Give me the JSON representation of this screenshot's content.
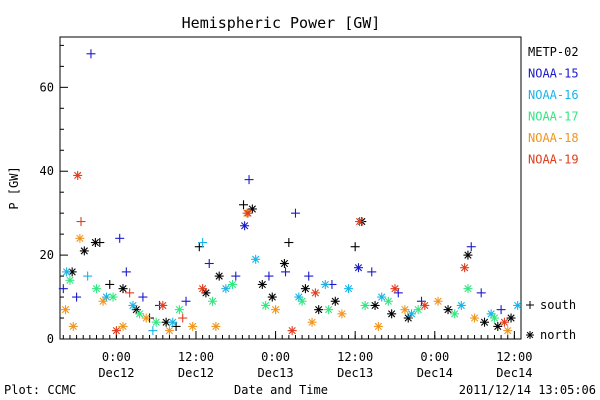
{
  "chart_data": {
    "type": "scatter",
    "title": "Hemispheric Power [GW]",
    "ylabel": "P [GW]",
    "xlabel": "Date and Time",
    "ylim": [
      0,
      72
    ],
    "xlim": [
      "2011-12-11T15:30",
      "2011-12-14T13:00"
    ],
    "y_ticks": [
      0,
      20,
      40,
      60
    ],
    "x_ticks": [
      {
        "t": "2011-12-12T00:00",
        "line1": "0:00",
        "line2": "Dec12"
      },
      {
        "t": "2011-12-12T12:00",
        "line1": "12:00",
        "line2": "Dec12"
      },
      {
        "t": "2011-12-13T00:00",
        "line1": "0:00",
        "line2": "Dec13"
      },
      {
        "t": "2011-12-13T12:00",
        "line1": "12:00",
        "line2": "Dec13"
      },
      {
        "t": "2011-12-14T00:00",
        "line1": "0:00",
        "line2": "Dec14"
      },
      {
        "t": "2011-12-14T12:00",
        "line1": "12:00",
        "line2": "Dec14"
      }
    ],
    "marker_legend": [
      {
        "symbol": "+",
        "label": "south"
      },
      {
        "symbol": "*",
        "label": "north"
      }
    ],
    "series": [
      {
        "name": "METP-02",
        "color": "#000000",
        "points": [
          {
            "x": "2011-12-11T17:20",
            "y": 16.0,
            "m": "north"
          },
          {
            "x": "2011-12-11T19:10",
            "y": 21.0,
            "m": "north"
          },
          {
            "x": "2011-12-11T20:50",
            "y": 23.0,
            "m": "north"
          },
          {
            "x": "2011-12-11T21:30",
            "y": 23.0,
            "m": "south"
          },
          {
            "x": "2011-12-11T23:00",
            "y": 13.0,
            "m": "south"
          },
          {
            "x": "2011-12-12T01:00",
            "y": 12.0,
            "m": "north"
          },
          {
            "x": "2011-12-12T03:00",
            "y": 7.0,
            "m": "north"
          },
          {
            "x": "2011-12-12T05:00",
            "y": 5.0,
            "m": "south"
          },
          {
            "x": "2011-12-12T07:30",
            "y": 4.0,
            "m": "north"
          },
          {
            "x": "2011-12-12T09:00",
            "y": 3.0,
            "m": "south"
          },
          {
            "x": "2011-12-12T12:30",
            "y": 22.0,
            "m": "south"
          },
          {
            "x": "2011-12-12T13:30",
            "y": 11.0,
            "m": "north"
          },
          {
            "x": "2011-12-12T15:30",
            "y": 15.0,
            "m": "north"
          },
          {
            "x": "2011-12-12T19:10",
            "y": 32.0,
            "m": "south"
          },
          {
            "x": "2011-12-12T20:30",
            "y": 31.0,
            "m": "north"
          },
          {
            "x": "2011-12-12T22:00",
            "y": 13.0,
            "m": "north"
          },
          {
            "x": "2011-12-12T23:30",
            "y": 10.0,
            "m": "north"
          },
          {
            "x": "2011-12-13T01:20",
            "y": 18.0,
            "m": "north"
          },
          {
            "x": "2011-12-13T02:00",
            "y": 23.0,
            "m": "south"
          },
          {
            "x": "2011-12-13T04:30",
            "y": 12.0,
            "m": "north"
          },
          {
            "x": "2011-12-13T06:30",
            "y": 7.0,
            "m": "north"
          },
          {
            "x": "2011-12-13T09:00",
            "y": 9.0,
            "m": "north"
          },
          {
            "x": "2011-12-13T12:00",
            "y": 22.0,
            "m": "south"
          },
          {
            "x": "2011-12-13T13:00",
            "y": 28.0,
            "m": "north"
          },
          {
            "x": "2011-12-13T15:00",
            "y": 8.0,
            "m": "north"
          },
          {
            "x": "2011-12-13T17:30",
            "y": 6.0,
            "m": "north"
          },
          {
            "x": "2011-12-13T20:00",
            "y": 5.0,
            "m": "north"
          },
          {
            "x": "2011-12-14T02:00",
            "y": 7.0,
            "m": "north"
          },
          {
            "x": "2011-12-14T05:00",
            "y": 20.0,
            "m": "north"
          },
          {
            "x": "2011-12-14T07:30",
            "y": 4.0,
            "m": "north"
          },
          {
            "x": "2011-12-14T09:30",
            "y": 3.0,
            "m": "north"
          },
          {
            "x": "2011-12-14T11:30",
            "y": 5.0,
            "m": "north"
          }
        ]
      },
      {
        "name": "NOAA-15",
        "color": "#1a1acc",
        "points": [
          {
            "x": "2011-12-11T16:00",
            "y": 12.0,
            "m": "south"
          },
          {
            "x": "2011-12-11T18:00",
            "y": 10.0,
            "m": "south"
          },
          {
            "x": "2011-12-11T20:10",
            "y": 68.0,
            "m": "south"
          },
          {
            "x": "2011-12-12T00:30",
            "y": 24.0,
            "m": "south"
          },
          {
            "x": "2011-12-12T01:30",
            "y": 16.0,
            "m": "south"
          },
          {
            "x": "2011-12-12T04:00",
            "y": 10.0,
            "m": "south"
          },
          {
            "x": "2011-12-12T06:30",
            "y": 8.0,
            "m": "south"
          },
          {
            "x": "2011-12-12T10:30",
            "y": 9.0,
            "m": "south"
          },
          {
            "x": "2011-12-12T14:00",
            "y": 18.0,
            "m": "south"
          },
          {
            "x": "2011-12-12T18:00",
            "y": 15.0,
            "m": "south"
          },
          {
            "x": "2011-12-12T19:20",
            "y": 27.0,
            "m": "north"
          },
          {
            "x": "2011-12-12T20:00",
            "y": 38.0,
            "m": "south"
          },
          {
            "x": "2011-12-12T23:00",
            "y": 15.0,
            "m": "south"
          },
          {
            "x": "2011-12-13T01:30",
            "y": 16.0,
            "m": "south"
          },
          {
            "x": "2011-12-13T03:00",
            "y": 30.0,
            "m": "south"
          },
          {
            "x": "2011-12-13T05:00",
            "y": 15.0,
            "m": "south"
          },
          {
            "x": "2011-12-13T08:30",
            "y": 13.0,
            "m": "south"
          },
          {
            "x": "2011-12-13T12:30",
            "y": 17.0,
            "m": "north"
          },
          {
            "x": "2011-12-13T14:30",
            "y": 16.0,
            "m": "south"
          },
          {
            "x": "2011-12-13T18:30",
            "y": 11.0,
            "m": "south"
          },
          {
            "x": "2011-12-13T22:00",
            "y": 9.0,
            "m": "south"
          },
          {
            "x": "2011-12-14T05:30",
            "y": 22.0,
            "m": "south"
          },
          {
            "x": "2011-12-14T07:00",
            "y": 11.0,
            "m": "south"
          },
          {
            "x": "2011-12-14T10:00",
            "y": 7.0,
            "m": "south"
          }
        ]
      },
      {
        "name": "NOAA-16",
        "color": "#1ab4e6",
        "points": [
          {
            "x": "2011-12-11T16:30",
            "y": 16.0,
            "m": "north"
          },
          {
            "x": "2011-12-11T19:40",
            "y": 15.0,
            "m": "south"
          },
          {
            "x": "2011-12-11T22:30",
            "y": 10.0,
            "m": "north"
          },
          {
            "x": "2011-12-12T02:30",
            "y": 8.0,
            "m": "north"
          },
          {
            "x": "2011-12-12T05:30",
            "y": 2.0,
            "m": "south"
          },
          {
            "x": "2011-12-12T08:30",
            "y": 4.0,
            "m": "north"
          },
          {
            "x": "2011-12-12T13:00",
            "y": 23.0,
            "m": "south"
          },
          {
            "x": "2011-12-12T16:30",
            "y": 12.0,
            "m": "north"
          },
          {
            "x": "2011-12-12T21:00",
            "y": 19.0,
            "m": "north"
          },
          {
            "x": "2011-12-13T03:30",
            "y": 10.0,
            "m": "north"
          },
          {
            "x": "2011-12-13T07:30",
            "y": 13.0,
            "m": "north"
          },
          {
            "x": "2011-12-13T11:00",
            "y": 12.0,
            "m": "north"
          },
          {
            "x": "2011-12-13T16:00",
            "y": 10.0,
            "m": "north"
          },
          {
            "x": "2011-12-13T20:30",
            "y": 6.0,
            "m": "north"
          },
          {
            "x": "2011-12-14T04:00",
            "y": 8.0,
            "m": "north"
          },
          {
            "x": "2011-12-14T08:30",
            "y": 6.0,
            "m": "north"
          },
          {
            "x": "2011-12-14T12:30",
            "y": 8.0,
            "m": "north"
          }
        ]
      },
      {
        "name": "NOAA-17",
        "color": "#33e680",
        "points": [
          {
            "x": "2011-12-11T17:00",
            "y": 14.0,
            "m": "north"
          },
          {
            "x": "2011-12-11T21:00",
            "y": 12.0,
            "m": "north"
          },
          {
            "x": "2011-12-11T23:30",
            "y": 10.0,
            "m": "north"
          },
          {
            "x": "2011-12-12T03:30",
            "y": 6.0,
            "m": "north"
          },
          {
            "x": "2011-12-12T06:00",
            "y": 4.0,
            "m": "north"
          },
          {
            "x": "2011-12-12T09:30",
            "y": 7.0,
            "m": "north"
          },
          {
            "x": "2011-12-12T14:30",
            "y": 9.0,
            "m": "north"
          },
          {
            "x": "2011-12-12T17:30",
            "y": 13.0,
            "m": "north"
          },
          {
            "x": "2011-12-12T22:30",
            "y": 8.0,
            "m": "north"
          },
          {
            "x": "2011-12-13T04:00",
            "y": 9.0,
            "m": "north"
          },
          {
            "x": "2011-12-13T08:00",
            "y": 7.0,
            "m": "north"
          },
          {
            "x": "2011-12-13T13:30",
            "y": 8.0,
            "m": "north"
          },
          {
            "x": "2011-12-13T17:00",
            "y": 9.0,
            "m": "north"
          },
          {
            "x": "2011-12-13T21:30",
            "y": 7.0,
            "m": "north"
          },
          {
            "x": "2011-12-14T03:00",
            "y": 6.0,
            "m": "north"
          },
          {
            "x": "2011-12-14T05:00",
            "y": 12.0,
            "m": "north"
          },
          {
            "x": "2011-12-14T09:00",
            "y": 5.0,
            "m": "north"
          }
        ]
      },
      {
        "name": "NOAA-18",
        "color": "#f0961e",
        "points": [
          {
            "x": "2011-12-11T16:20",
            "y": 7.0,
            "m": "north"
          },
          {
            "x": "2011-12-11T17:30",
            "y": 3.0,
            "m": "north"
          },
          {
            "x": "2011-12-11T18:30",
            "y": 24.0,
            "m": "north"
          },
          {
            "x": "2011-12-11T22:00",
            "y": 9.0,
            "m": "north"
          },
          {
            "x": "2011-12-12T01:00",
            "y": 3.0,
            "m": "north"
          },
          {
            "x": "2011-12-12T04:30",
            "y": 5.0,
            "m": "north"
          },
          {
            "x": "2011-12-12T08:00",
            "y": 2.0,
            "m": "north"
          },
          {
            "x": "2011-12-12T11:30",
            "y": 3.0,
            "m": "north"
          },
          {
            "x": "2011-12-12T15:00",
            "y": 3.0,
            "m": "north"
          },
          {
            "x": "2011-12-12T19:40",
            "y": 30.0,
            "m": "north"
          },
          {
            "x": "2011-12-13T00:00",
            "y": 7.0,
            "m": "north"
          },
          {
            "x": "2011-12-13T05:30",
            "y": 4.0,
            "m": "north"
          },
          {
            "x": "2011-12-13T10:00",
            "y": 6.0,
            "m": "north"
          },
          {
            "x": "2011-12-13T15:30",
            "y": 3.0,
            "m": "north"
          },
          {
            "x": "2011-12-13T19:30",
            "y": 7.0,
            "m": "north"
          },
          {
            "x": "2011-12-14T00:30",
            "y": 9.0,
            "m": "north"
          },
          {
            "x": "2011-12-14T06:00",
            "y": 5.0,
            "m": "north"
          },
          {
            "x": "2011-12-14T11:00",
            "y": 2.0,
            "m": "north"
          }
        ]
      },
      {
        "name": "NOAA-19",
        "color": "#e03c1e",
        "points": [
          {
            "x": "2011-12-11T18:10",
            "y": 39.0,
            "m": "north"
          },
          {
            "x": "2011-12-11T18:40",
            "y": 28.0,
            "m": "south"
          },
          {
            "x": "2011-12-12T00:00",
            "y": 2.0,
            "m": "north"
          },
          {
            "x": "2011-12-12T02:00",
            "y": 11.0,
            "m": "south"
          },
          {
            "x": "2011-12-12T07:00",
            "y": 8.0,
            "m": "north"
          },
          {
            "x": "2011-12-12T10:00",
            "y": 5.0,
            "m": "south"
          },
          {
            "x": "2011-12-12T13:00",
            "y": 12.0,
            "m": "north"
          },
          {
            "x": "2011-12-12T19:50",
            "y": 30.0,
            "m": "north"
          },
          {
            "x": "2011-12-13T02:30",
            "y": 2.0,
            "m": "north"
          },
          {
            "x": "2011-12-13T06:00",
            "y": 11.0,
            "m": "north"
          },
          {
            "x": "2011-12-13T12:40",
            "y": 28.0,
            "m": "north"
          },
          {
            "x": "2011-12-13T18:00",
            "y": 12.0,
            "m": "north"
          },
          {
            "x": "2011-12-13T22:30",
            "y": 8.0,
            "m": "north"
          },
          {
            "x": "2011-12-14T04:30",
            "y": 17.0,
            "m": "north"
          },
          {
            "x": "2011-12-14T10:30",
            "y": 4.0,
            "m": "north"
          }
        ]
      }
    ]
  },
  "footer": {
    "plot_credit": "Plot: CCMC",
    "timestamp": "2011/12/14 13:05:06"
  }
}
